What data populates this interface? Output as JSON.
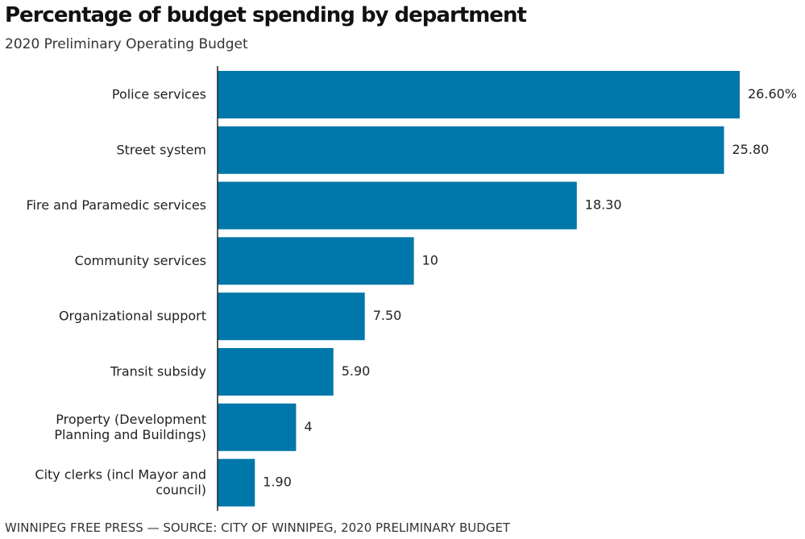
{
  "chart_data": {
    "type": "bar",
    "orientation": "horizontal",
    "title": "Percentage of budget spending by department",
    "subtitle": "2020 Preliminary Operating Budget",
    "categories": [
      [
        "Police services"
      ],
      [
        "Street system"
      ],
      [
        "Fire and Paramedic services"
      ],
      [
        "Community services"
      ],
      [
        "Organizational support"
      ],
      [
        "Transit subsidy"
      ],
      [
        "Property (Development",
        "Planning and Buildings)"
      ],
      [
        "City clerks (incl Mayor and",
        "council)"
      ]
    ],
    "values": [
      26.6,
      25.8,
      18.3,
      10,
      7.5,
      5.9,
      4,
      1.9
    ],
    "value_labels": [
      "26.60%",
      "25.80",
      "18.30",
      "10",
      "7.50",
      "5.90",
      "4",
      "1.90"
    ],
    "xlabel": "",
    "ylabel": "",
    "xlim": [
      0,
      26.6
    ],
    "grid": false,
    "legend": "none",
    "bar_color": "#0077AA",
    "source": "WINNIPEG FREE PRESS — SOURCE: CITY OF WINNIPEG, 2020 PRELIMINARY BUDGET"
  }
}
